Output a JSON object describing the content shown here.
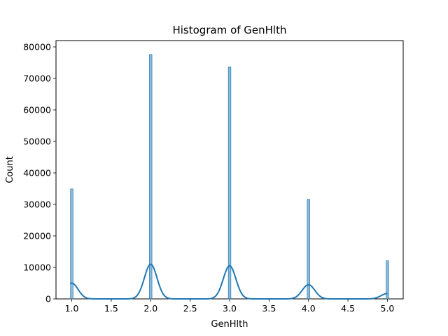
{
  "chart_data": {
    "type": "bar",
    "title": "Histogram of GenHlth",
    "xlabel": "GenHlth",
    "ylabel": "Count",
    "xlim": [
      0.8,
      5.2
    ],
    "ylim": [
      0,
      82000
    ],
    "xticks": [
      1.0,
      1.5,
      2.0,
      2.5,
      3.0,
      3.5,
      4.0,
      4.5,
      5.0
    ],
    "yticks": [
      0,
      10000,
      20000,
      30000,
      40000,
      50000,
      60000,
      70000,
      80000
    ],
    "bar_color": "#1f77b4",
    "bins": [
      {
        "x": 1.0,
        "value": 34900
      },
      {
        "x": 2.0,
        "value": 77600
      },
      {
        "x": 3.0,
        "value": 73600
      },
      {
        "x": 4.0,
        "value": 31600
      },
      {
        "x": 5.0,
        "value": 12100
      }
    ],
    "kde": {
      "name": "KDE",
      "color": "#1f77b4",
      "peaks": [
        {
          "x": 1.0,
          "value": 5000
        },
        {
          "x": 2.0,
          "value": 11000
        },
        {
          "x": 3.0,
          "value": 10500
        },
        {
          "x": 4.0,
          "value": 4500
        },
        {
          "x": 5.0,
          "value": 1700
        }
      ],
      "sigma": 0.08
    },
    "grid": false
  }
}
